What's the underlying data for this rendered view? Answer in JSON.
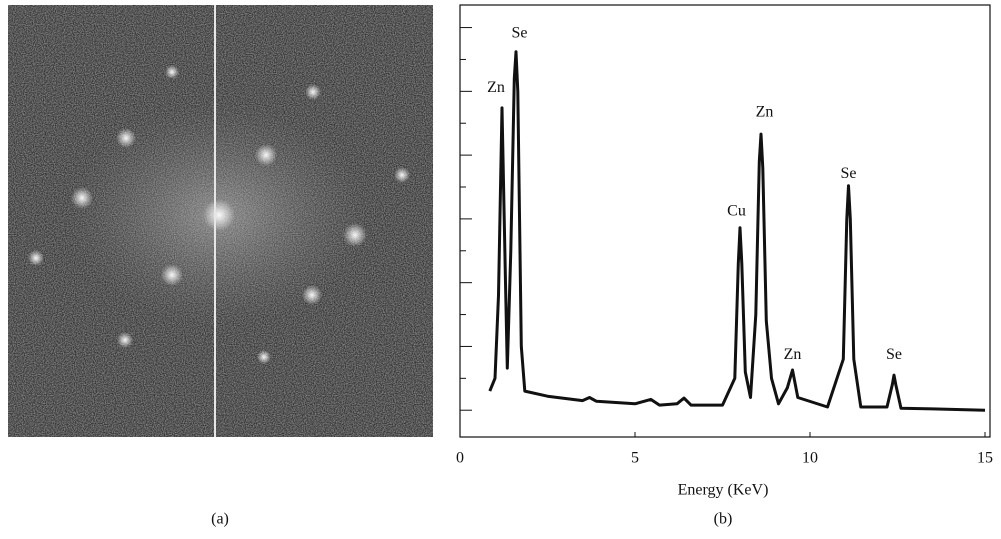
{
  "chart_data": {
    "type": "line",
    "xlabel": "Energy (KeV)",
    "xlim": [
      0,
      15
    ],
    "xticks": [
      0,
      5,
      10,
      15
    ],
    "ylim": [
      -0.42,
      6.15
    ],
    "yticks": [
      0,
      1,
      2,
      3,
      4,
      5,
      6
    ],
    "yminor": [
      0.5,
      1.5,
      2.5,
      3.5,
      4.5,
      5.5
    ],
    "color": "#111111",
    "x": [
      0.85,
      1.0,
      1.1,
      1.2,
      1.3,
      1.35,
      1.45,
      1.55,
      1.6,
      1.65,
      1.75,
      1.85,
      2.5,
      3.5,
      3.7,
      3.9,
      5.0,
      5.45,
      5.7,
      6.2,
      6.4,
      6.6,
      7.5,
      7.85,
      7.95,
      8.0,
      8.05,
      8.15,
      8.3,
      8.45,
      8.55,
      8.6,
      8.65,
      8.75,
      8.9,
      9.1,
      9.35,
      9.5,
      9.65,
      10.5,
      10.95,
      11.05,
      11.1,
      11.15,
      11.25,
      11.45,
      12.2,
      12.35,
      12.4,
      12.45,
      12.6,
      13.5,
      15
    ],
    "values": [
      0.3,
      0.5,
      1.8,
      4.74,
      2.0,
      0.66,
      2.5,
      5.2,
      5.62,
      5.0,
      1.0,
      0.3,
      0.22,
      0.15,
      0.2,
      0.14,
      0.1,
      0.17,
      0.08,
      0.1,
      0.19,
      0.08,
      0.08,
      0.5,
      2.3,
      2.86,
      2.3,
      0.6,
      0.2,
      1.5,
      3.9,
      4.33,
      3.8,
      1.4,
      0.5,
      0.1,
      0.35,
      0.63,
      0.2,
      0.05,
      0.8,
      3.0,
      3.52,
      3.0,
      0.8,
      0.05,
      0.05,
      0.4,
      0.55,
      0.4,
      0.03,
      0.02,
      0.0
    ],
    "annotations": [
      {
        "text": "Zn",
        "x": 1.03,
        "y": 5.05
      },
      {
        "text": "Se",
        "x": 1.7,
        "y": 5.9
      },
      {
        "text": "Cu",
        "x": 7.9,
        "y": 3.11
      },
      {
        "text": "Zn",
        "x": 8.7,
        "y": 4.66
      },
      {
        "text": "Zn",
        "x": 9.5,
        "y": 0.86
      },
      {
        "text": "Se",
        "x": 11.1,
        "y": 3.7
      },
      {
        "text": "Se",
        "x": 12.4,
        "y": 0.86
      }
    ]
  },
  "panel_labels": [
    "(a)",
    "(b)"
  ]
}
